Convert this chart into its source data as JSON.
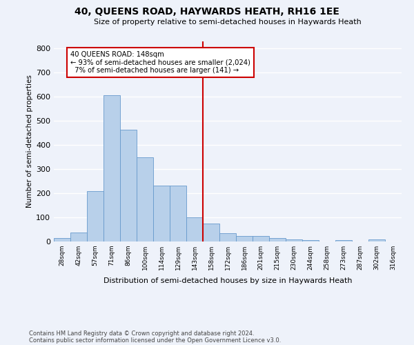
{
  "title": "40, QUEENS ROAD, HAYWARDS HEATH, RH16 1EE",
  "subtitle": "Size of property relative to semi-detached houses in Haywards Heath",
  "xlabel": "Distribution of semi-detached houses by size in Haywards Heath",
  "ylabel": "Number of semi-detached properties",
  "categories": [
    "28sqm",
    "42sqm",
    "57sqm",
    "71sqm",
    "86sqm",
    "100sqm",
    "114sqm",
    "129sqm",
    "143sqm",
    "158sqm",
    "172sqm",
    "186sqm",
    "201sqm",
    "215sqm",
    "230sqm",
    "244sqm",
    "258sqm",
    "273sqm",
    "287sqm",
    "302sqm",
    "316sqm"
  ],
  "values": [
    15,
    37,
    210,
    607,
    463,
    349,
    233,
    233,
    101,
    73,
    35,
    22,
    22,
    14,
    9,
    5,
    0,
    5,
    0,
    8,
    0
  ],
  "bar_color": "#b8d0ea",
  "bar_edge_color": "#6699cc",
  "annotation_box_color": "#cc0000",
  "pct_smaller": 93,
  "count_smaller": 2024,
  "pct_larger": 7,
  "count_larger": 141,
  "ylim": [
    0,
    830
  ],
  "yticks": [
    0,
    100,
    200,
    300,
    400,
    500,
    600,
    700,
    800
  ],
  "background_color": "#eef2fa",
  "grid_color": "#ffffff",
  "footer1": "Contains HM Land Registry data © Crown copyright and database right 2024.",
  "footer2": "Contains public sector information licensed under the Open Government Licence v3.0."
}
